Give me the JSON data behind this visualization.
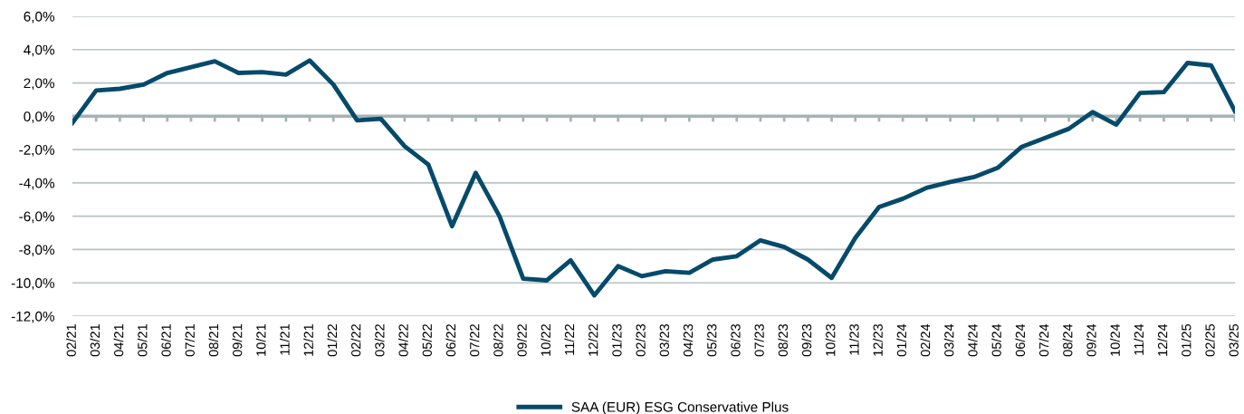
{
  "chart_data": {
    "type": "line",
    "categories": [
      "02/21",
      "03/21",
      "04/21",
      "05/21",
      "06/21",
      "07/21",
      "08/21",
      "09/21",
      "10/21",
      "11/21",
      "12/21",
      "01/22",
      "02/22",
      "03/22",
      "04/22",
      "05/22",
      "06/22",
      "07/22",
      "08/22",
      "09/22",
      "10/22",
      "11/22",
      "12/22",
      "01/23",
      "02/23",
      "03/23",
      "04/23",
      "05/23",
      "06/23",
      "07/23",
      "08/23",
      "09/23",
      "10/23",
      "11/23",
      "12/23",
      "01/24",
      "02/24",
      "03/24",
      "04/24",
      "05/24",
      "06/24",
      "07/24",
      "08/24",
      "09/24",
      "10/24",
      "11/24",
      "12/24",
      "01/25",
      "02/25",
      "03/25"
    ],
    "series": [
      {
        "name": "SAA (EUR) ESG Conservative Plus",
        "color": "#054a6a",
        "values": [
          -0.4,
          1.55,
          1.65,
          1.9,
          2.6,
          2.95,
          3.3,
          2.6,
          2.65,
          2.5,
          3.35,
          1.9,
          -0.25,
          -0.15,
          -1.8,
          -2.9,
          -6.6,
          -3.4,
          -6.0,
          -9.75,
          -9.85,
          -8.65,
          -10.75,
          -9.0,
          -9.6,
          -9.3,
          -9.4,
          -8.6,
          -8.4,
          -7.45,
          -7.85,
          -8.6,
          -9.7,
          -7.3,
          -5.45,
          -4.95,
          -4.3,
          -3.95,
          -3.65,
          -3.1,
          -1.85,
          -1.3,
          -0.75,
          0.25,
          -0.5,
          1.4,
          1.45,
          3.2,
          3.05,
          0.3
        ]
      }
    ],
    "ylim": [
      -12,
      6
    ],
    "yticks": [
      {
        "value": -12,
        "label": "-12,0%"
      },
      {
        "value": -10,
        "label": "-10,0%"
      },
      {
        "value": -8,
        "label": "-8,0%"
      },
      {
        "value": -6,
        "label": "-6,0%"
      },
      {
        "value": -4,
        "label": "-4,0%"
      },
      {
        "value": -2,
        "label": "-2,0%"
      },
      {
        "value": 0,
        "label": "0,0%"
      },
      {
        "value": 2,
        "label": "2,0%"
      },
      {
        "value": 4,
        "label": "4,0%"
      },
      {
        "value": 6,
        "label": "6,0%"
      }
    ],
    "ref_lines": [
      {
        "axis": "y",
        "value": 0,
        "color": "#a6b3b5"
      }
    ],
    "grid": "y",
    "legend": "bottom",
    "marker": "none",
    "line_style": "solid"
  }
}
